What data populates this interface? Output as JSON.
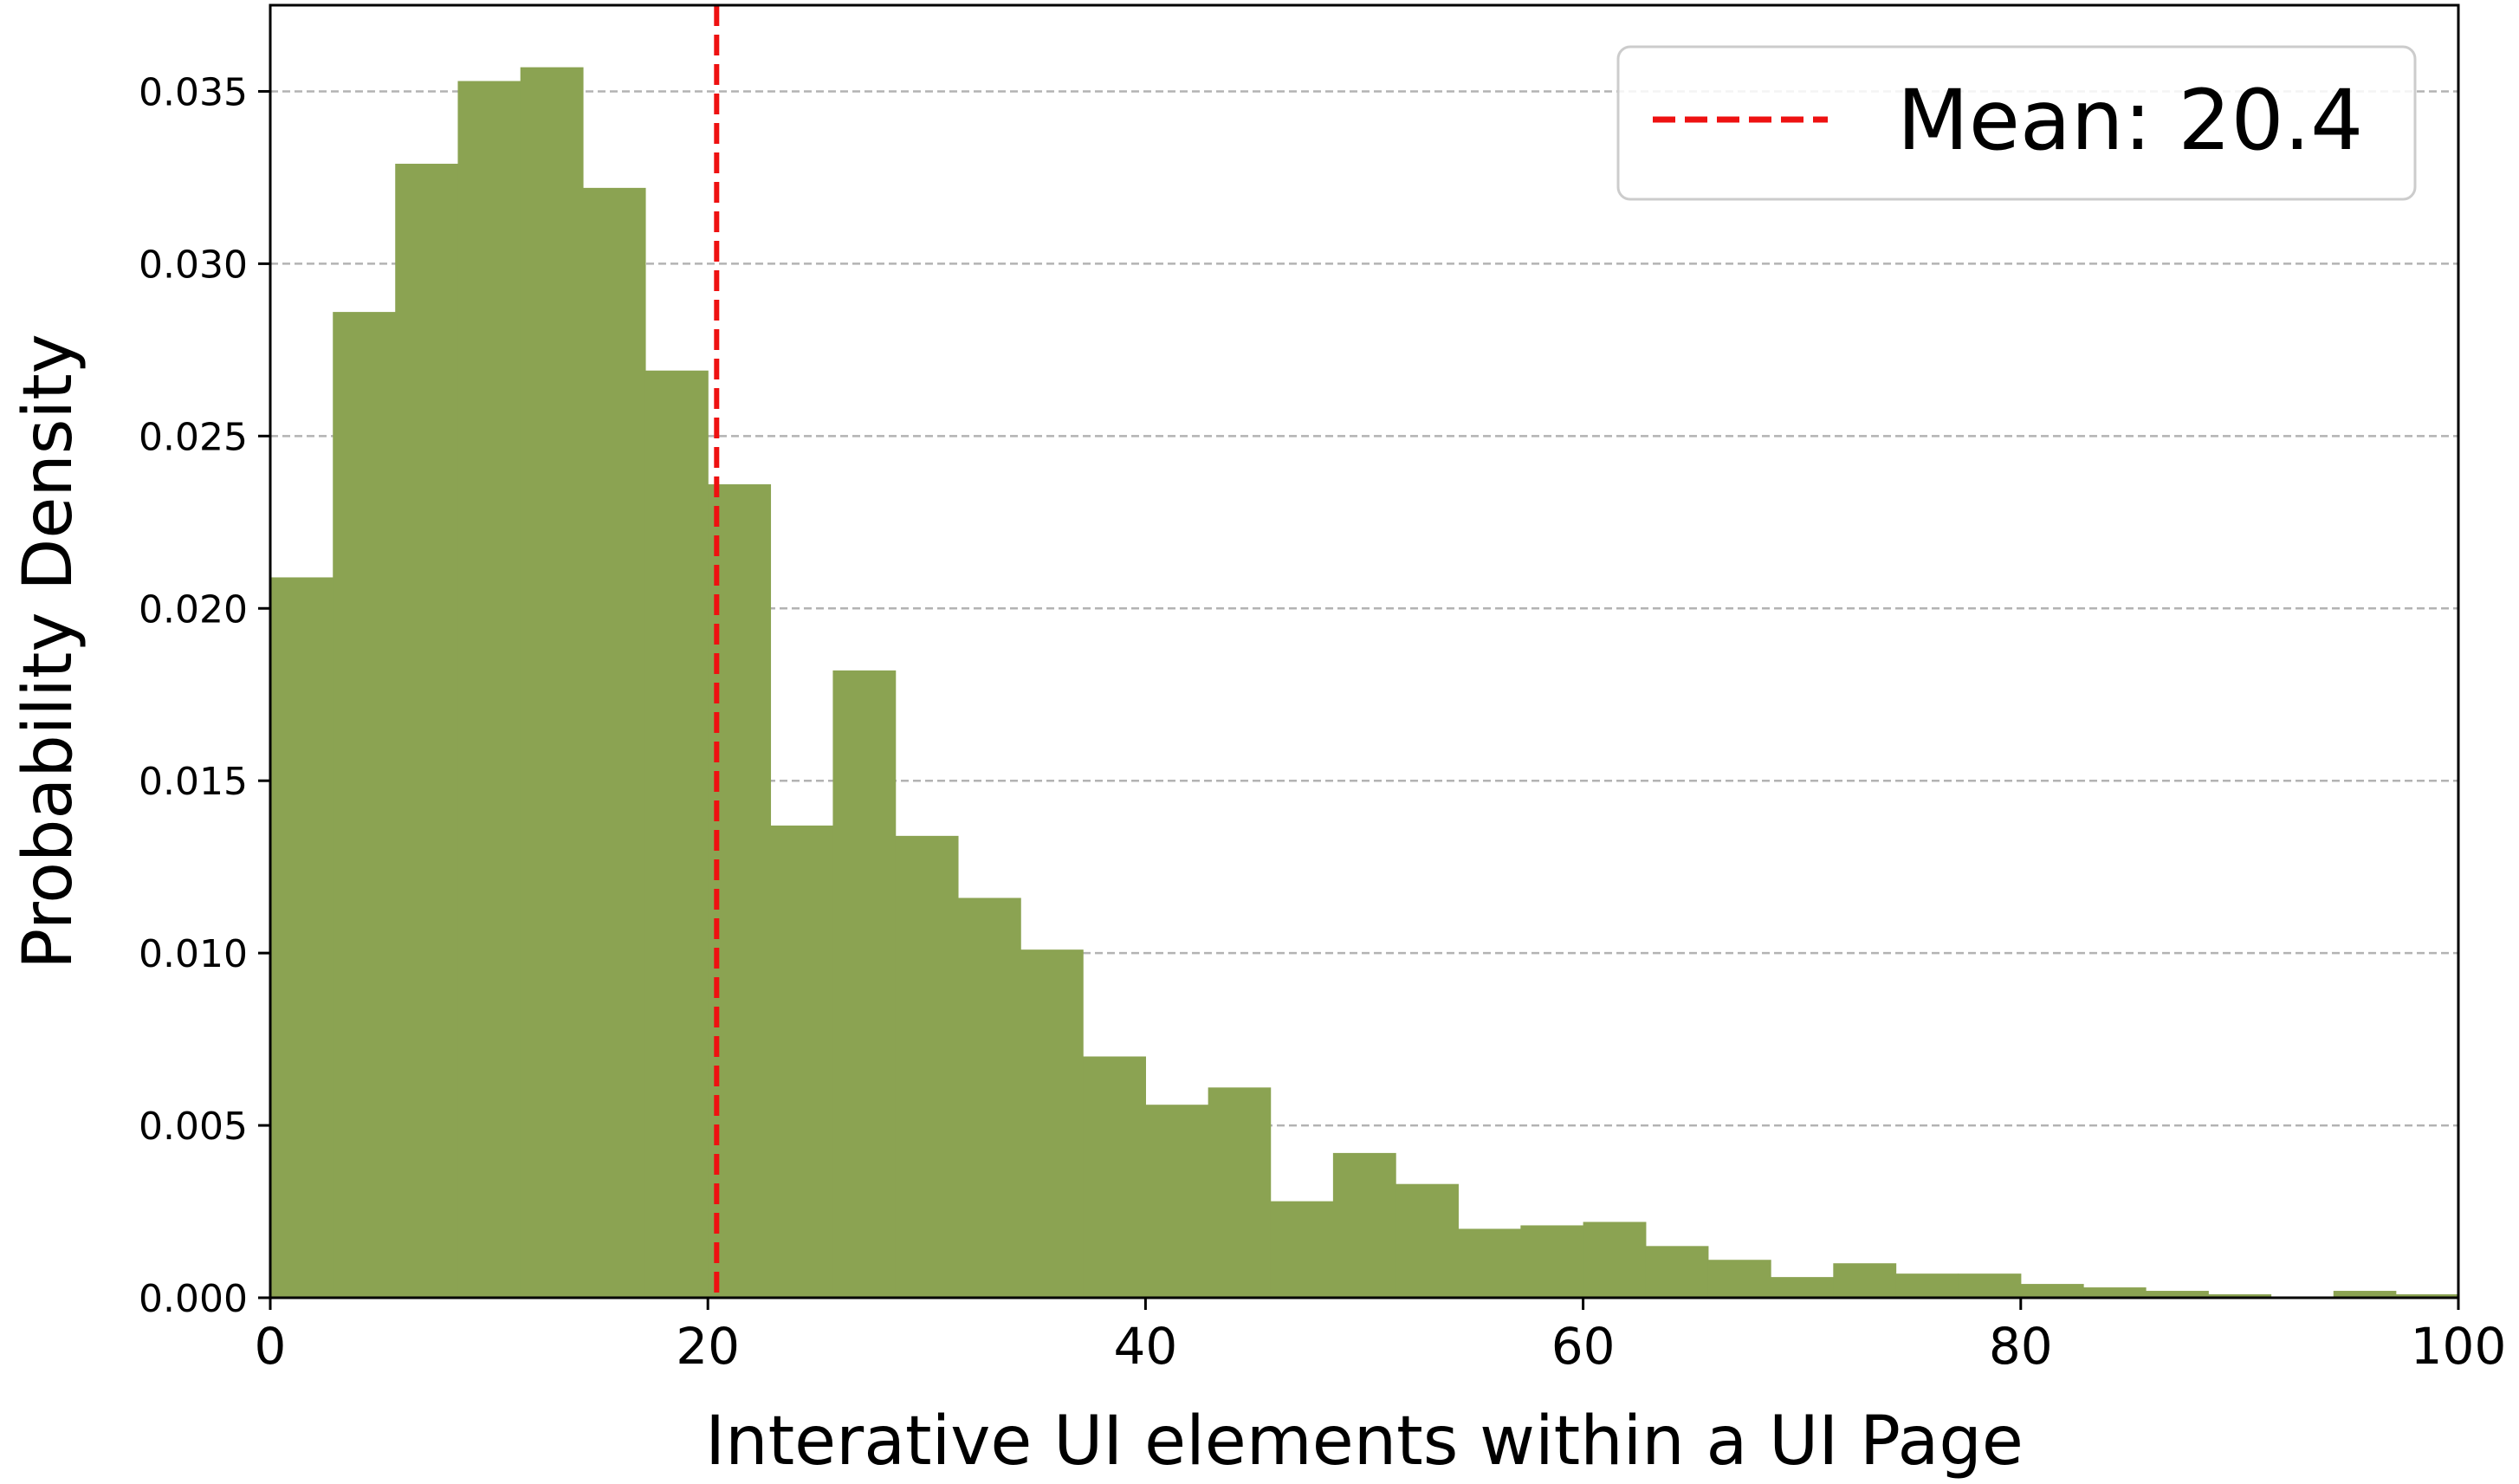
{
  "chart_data": {
    "type": "bar",
    "title": "",
    "xlabel": "Interative UI elements within a UI Page",
    "ylabel": "Probability Density",
    "xlim": [
      0,
      100
    ],
    "ylim": [
      0,
      0.0375
    ],
    "xticks": [
      0,
      20,
      40,
      60,
      80,
      100
    ],
    "yticks": [
      0,
      0.005,
      0.01,
      0.015,
      0.02,
      0.025,
      0.03,
      0.035
    ],
    "ytick_labels": [
      "0.000",
      "0.005",
      "0.010",
      "0.015",
      "0.020",
      "0.025",
      "0.030",
      "0.035"
    ],
    "grid": "y-dashed",
    "bar_color": "#8ba352",
    "bin_edges": [
      0,
      2.86,
      5.71,
      8.57,
      11.43,
      14.29,
      17.14,
      20,
      22.86,
      25.71,
      28.57,
      31.43,
      34.29,
      37.14,
      40,
      42.86,
      45.71,
      48.57,
      51.43,
      54.29,
      57.14,
      60,
      62.86,
      65.71,
      68.57,
      71.43,
      74.29,
      77.14,
      80,
      82.86,
      85.71,
      88.57,
      91.43,
      94.29,
      97.14,
      100
    ],
    "values": [
      0.0209,
      0.0286,
      0.0329,
      0.0353,
      0.0357,
      0.0322,
      0.0269,
      0.0236,
      0.0137,
      0.0182,
      0.0134,
      0.0116,
      0.0101,
      0.007,
      0.0056,
      0.0061,
      0.0028,
      0.0042,
      0.0033,
      0.002,
      0.0021,
      0.0022,
      0.0015,
      0.0011,
      0.0006,
      0.001,
      0.0007,
      0.0007,
      0.0004,
      0.0003,
      0.0002,
      0.0001,
      0.0,
      0.0002,
      0.0001
    ],
    "mean_line": {
      "value": 20.4,
      "color": "#ee1111",
      "style": "dashed"
    },
    "legend": {
      "placement": "top-right",
      "label": "Mean: 20.4"
    }
  }
}
